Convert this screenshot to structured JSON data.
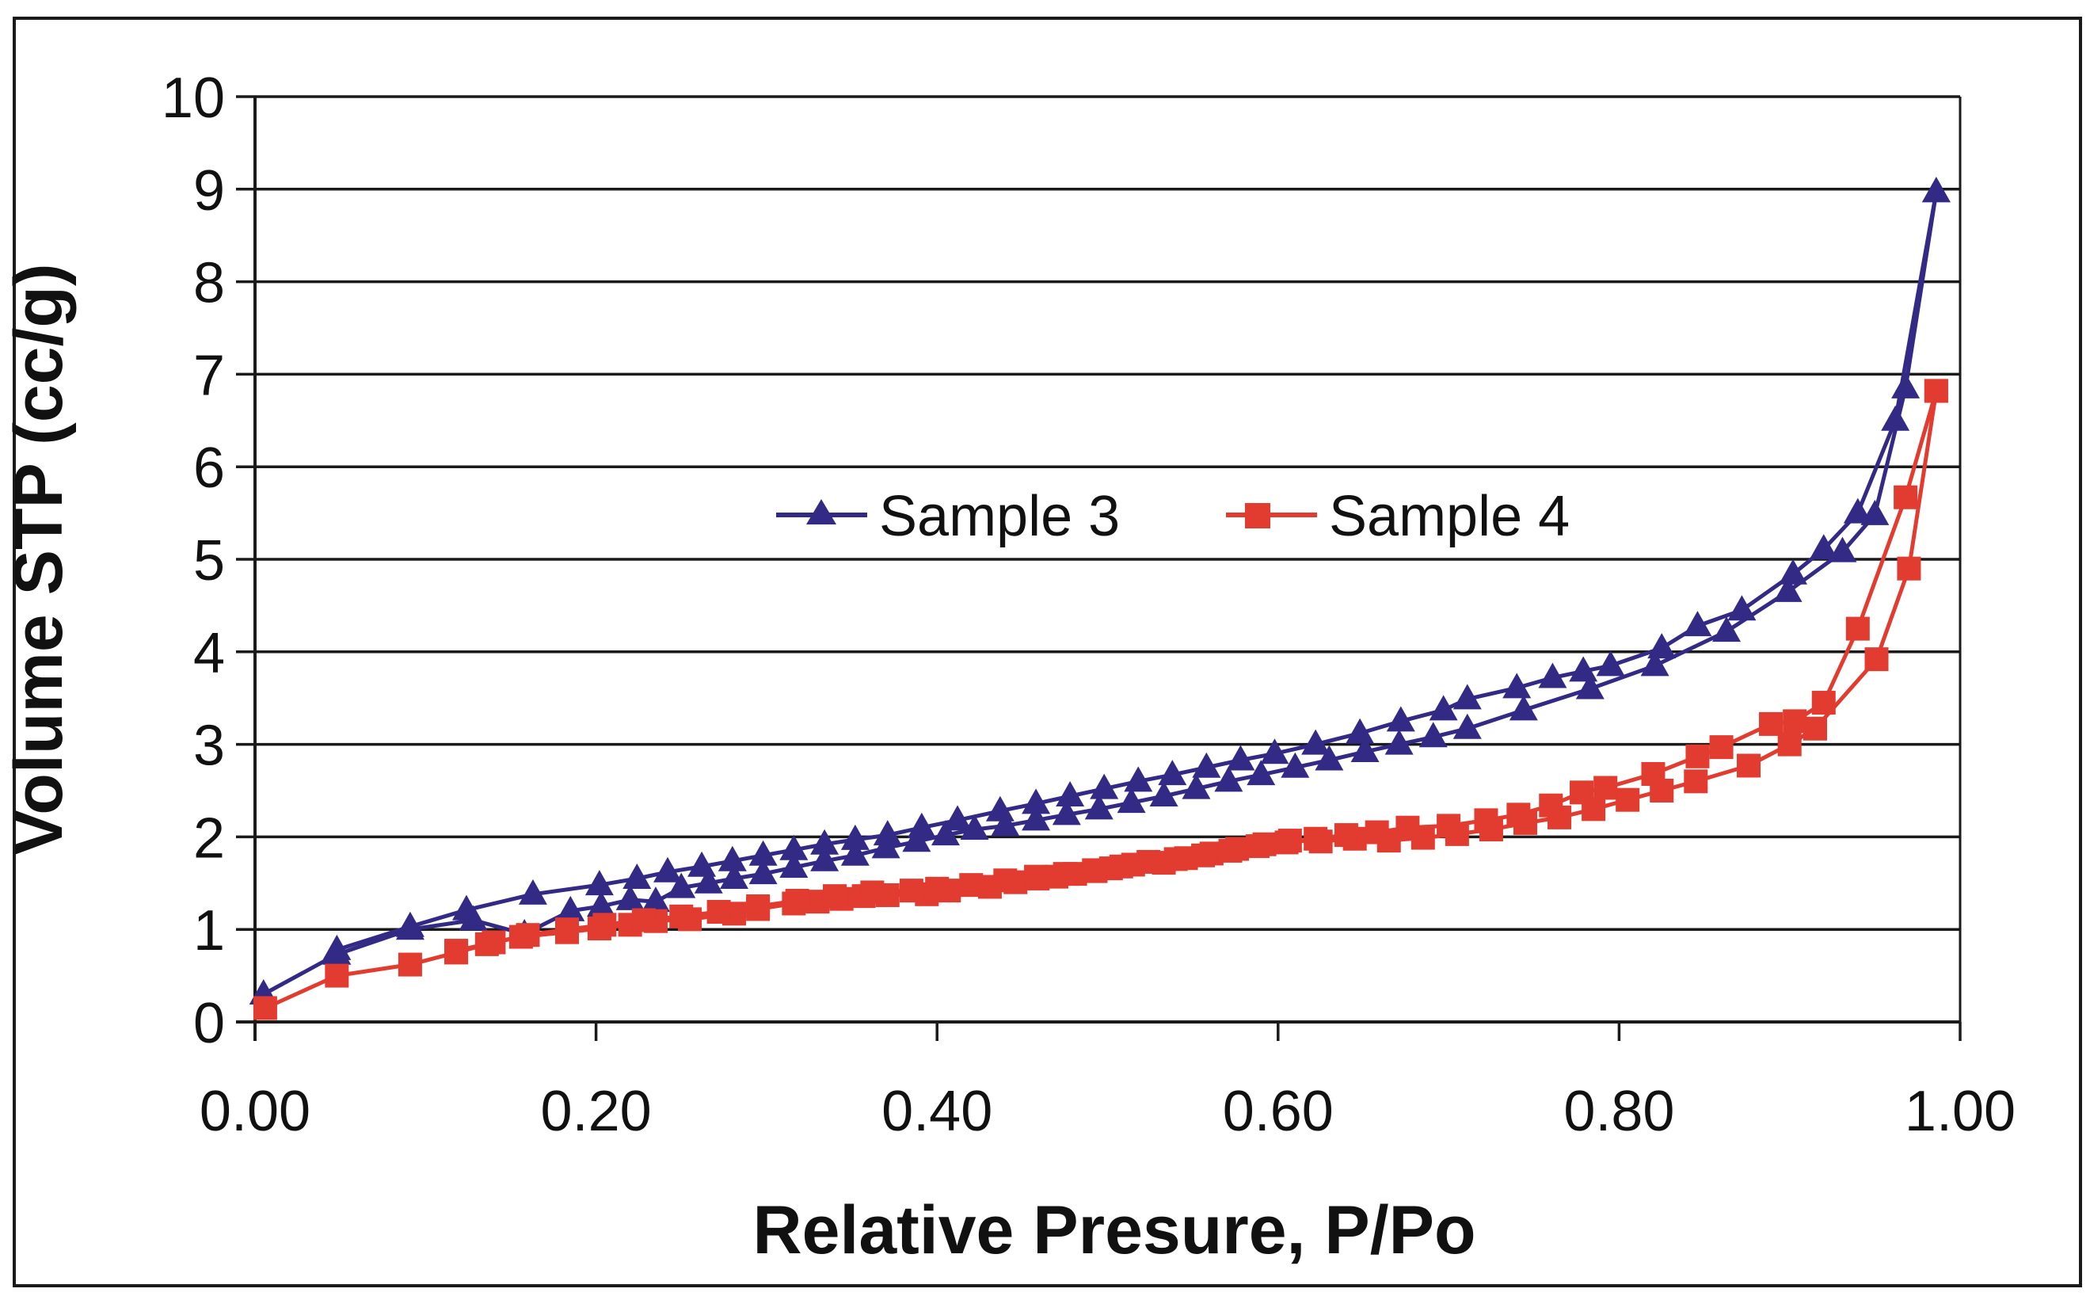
{
  "chart_data": {
    "type": "line",
    "title": "",
    "xlabel": "Relative Presure, P/Po",
    "ylabel": "Volume STP (cc/g)",
    "xlim": [
      0.0,
      1.0
    ],
    "ylim": [
      0,
      10
    ],
    "grid": "horizontal-only",
    "legend_position": "inside-upper-middle",
    "x_ticks": {
      "values": [
        0.0,
        0.2,
        0.4,
        0.6,
        0.8,
        1.0
      ],
      "labels": [
        "0.00",
        "0.20",
        "0.40",
        "0.60",
        "0.80",
        "1.00"
      ]
    },
    "y_ticks": {
      "values": [
        0,
        1,
        2,
        3,
        4,
        5,
        6,
        7,
        8,
        9,
        10
      ],
      "labels": [
        "0",
        "1",
        "2",
        "3",
        "4",
        "5",
        "6",
        "7",
        "8",
        "9",
        "10"
      ]
    },
    "series": [
      {
        "name": "Sample 3",
        "color": "#332a86",
        "marker": "triangle",
        "description": "adsorption-desorption isotherm with hysteresis loop",
        "branches": {
          "adsorption": [
            [
              0.005,
              0.3
            ],
            [
              0.048,
              0.73
            ],
            [
              0.091,
              1.0
            ],
            [
              0.128,
              1.1
            ],
            [
              0.158,
              0.95
            ],
            [
              0.185,
              1.2
            ],
            [
              0.203,
              1.25
            ],
            [
              0.22,
              1.32
            ],
            [
              0.235,
              1.3
            ],
            [
              0.25,
              1.45
            ],
            [
              0.266,
              1.5
            ],
            [
              0.281,
              1.55
            ],
            [
              0.298,
              1.6
            ],
            [
              0.316,
              1.67
            ],
            [
              0.334,
              1.74
            ],
            [
              0.352,
              1.8
            ],
            [
              0.37,
              1.88
            ],
            [
              0.388,
              1.95
            ],
            [
              0.405,
              2.02
            ],
            [
              0.422,
              2.08
            ],
            [
              0.44,
              2.12
            ],
            [
              0.458,
              2.18
            ],
            [
              0.476,
              2.24
            ],
            [
              0.495,
              2.3
            ],
            [
              0.514,
              2.37
            ],
            [
              0.533,
              2.44
            ],
            [
              0.552,
              2.52
            ],
            [
              0.571,
              2.6
            ],
            [
              0.59,
              2.67
            ],
            [
              0.61,
              2.75
            ],
            [
              0.63,
              2.83
            ],
            [
              0.651,
              2.92
            ],
            [
              0.671,
              3.0
            ],
            [
              0.691,
              3.08
            ],
            [
              0.711,
              3.17
            ],
            [
              0.744,
              3.37
            ],
            [
              0.783,
              3.6
            ],
            [
              0.821,
              3.85
            ],
            [
              0.863,
              4.22
            ],
            [
              0.899,
              4.65
            ],
            [
              0.931,
              5.08
            ],
            [
              0.95,
              5.48
            ],
            [
              0.968,
              6.85
            ],
            [
              0.986,
              8.97
            ]
          ],
          "desorption": [
            [
              0.986,
              8.97
            ],
            [
              0.962,
              6.5
            ],
            [
              0.94,
              5.5
            ],
            [
              0.92,
              5.11
            ],
            [
              0.902,
              4.84
            ],
            [
              0.872,
              4.45
            ],
            [
              0.846,
              4.28
            ],
            [
              0.825,
              4.04
            ],
            [
              0.795,
              3.85
            ],
            [
              0.779,
              3.79
            ],
            [
              0.761,
              3.72
            ],
            [
              0.74,
              3.61
            ],
            [
              0.711,
              3.49
            ],
            [
              0.697,
              3.37
            ],
            [
              0.672,
              3.25
            ],
            [
              0.648,
              3.12
            ],
            [
              0.622,
              3.0
            ],
            [
              0.598,
              2.9
            ],
            [
              0.578,
              2.83
            ],
            [
              0.558,
              2.75
            ],
            [
              0.538,
              2.67
            ],
            [
              0.518,
              2.6
            ],
            [
              0.498,
              2.52
            ],
            [
              0.478,
              2.44
            ],
            [
              0.458,
              2.36
            ],
            [
              0.437,
              2.28
            ],
            [
              0.412,
              2.18
            ],
            [
              0.391,
              2.1
            ],
            [
              0.371,
              2.02
            ],
            [
              0.352,
              1.97
            ],
            [
              0.334,
              1.92
            ],
            [
              0.316,
              1.86
            ],
            [
              0.298,
              1.8
            ],
            [
              0.28,
              1.74
            ],
            [
              0.262,
              1.68
            ],
            [
              0.242,
              1.62
            ],
            [
              0.224,
              1.55
            ],
            [
              0.202,
              1.48
            ],
            [
              0.163,
              1.38
            ],
            [
              0.124,
              1.21
            ],
            [
              0.091,
              1.03
            ],
            [
              0.048,
              0.78
            ]
          ]
        }
      },
      {
        "name": "Sample 4",
        "color": "#e23b30",
        "marker": "square",
        "description": "adsorption-desorption isotherm with hysteresis loop",
        "branches": {
          "adsorption": [
            [
              0.006,
              0.15
            ],
            [
              0.048,
              0.5
            ],
            [
              0.091,
              0.62
            ],
            [
              0.118,
              0.75
            ],
            [
              0.136,
              0.84
            ],
            [
              0.156,
              0.92
            ],
            [
              0.183,
              0.97
            ],
            [
              0.202,
              1.01
            ],
            [
              0.22,
              1.05
            ],
            [
              0.235,
              1.09
            ],
            [
              0.255,
              1.11
            ],
            [
              0.281,
              1.17
            ],
            [
              0.295,
              1.22
            ],
            [
              0.316,
              1.28
            ],
            [
              0.33,
              1.3
            ],
            [
              0.344,
              1.33
            ],
            [
              0.357,
              1.36
            ],
            [
              0.371,
              1.37
            ],
            [
              0.394,
              1.38
            ],
            [
              0.407,
              1.42
            ],
            [
              0.431,
              1.46
            ],
            [
              0.446,
              1.51
            ],
            [
              0.459,
              1.55
            ],
            [
              0.47,
              1.57
            ],
            [
              0.481,
              1.6
            ],
            [
              0.493,
              1.63
            ],
            [
              0.502,
              1.66
            ],
            [
              0.515,
              1.7
            ],
            [
              0.533,
              1.72
            ],
            [
              0.546,
              1.77
            ],
            [
              0.561,
              1.82
            ],
            [
              0.576,
              1.87
            ],
            [
              0.592,
              1.92
            ],
            [
              0.607,
              1.96
            ],
            [
              0.625,
              1.95
            ],
            [
              0.645,
              1.98
            ],
            [
              0.665,
              1.96
            ],
            [
              0.685,
              1.99
            ],
            [
              0.705,
              2.03
            ],
            [
              0.725,
              2.08
            ],
            [
              0.745,
              2.15
            ],
            [
              0.765,
              2.21
            ],
            [
              0.785,
              2.3
            ],
            [
              0.805,
              2.4
            ],
            [
              0.825,
              2.5
            ],
            [
              0.845,
              2.6
            ],
            [
              0.876,
              2.77
            ],
            [
              0.9,
              3.0
            ],
            [
              0.915,
              3.17
            ],
            [
              0.951,
              3.92
            ],
            [
              0.97,
              4.9
            ],
            [
              0.986,
              6.82
            ]
          ],
          "desorption": [
            [
              0.986,
              6.82
            ],
            [
              0.968,
              5.67
            ],
            [
              0.94,
              4.25
            ],
            [
              0.92,
              3.45
            ],
            [
              0.903,
              3.25
            ],
            [
              0.889,
              3.22
            ],
            [
              0.86,
              2.97
            ],
            [
              0.846,
              2.87
            ],
            [
              0.82,
              2.68
            ],
            [
              0.792,
              2.53
            ],
            [
              0.778,
              2.48
            ],
            [
              0.76,
              2.34
            ],
            [
              0.741,
              2.24
            ],
            [
              0.722,
              2.18
            ],
            [
              0.7,
              2.12
            ],
            [
              0.676,
              2.1
            ],
            [
              0.658,
              2.05
            ],
            [
              0.64,
              2.02
            ],
            [
              0.622,
              1.98
            ],
            [
              0.605,
              1.94
            ],
            [
              0.588,
              1.9
            ],
            [
              0.572,
              1.85
            ],
            [
              0.556,
              1.8
            ],
            [
              0.54,
              1.76
            ],
            [
              0.524,
              1.73
            ],
            [
              0.508,
              1.68
            ],
            [
              0.492,
              1.64
            ],
            [
              0.475,
              1.6
            ],
            [
              0.458,
              1.57
            ],
            [
              0.44,
              1.53
            ],
            [
              0.42,
              1.48
            ],
            [
              0.4,
              1.44
            ],
            [
              0.385,
              1.42
            ],
            [
              0.362,
              1.4
            ],
            [
              0.34,
              1.36
            ],
            [
              0.318,
              1.31
            ],
            [
              0.295,
              1.25
            ],
            [
              0.272,
              1.19
            ],
            [
              0.25,
              1.14
            ],
            [
              0.228,
              1.1
            ],
            [
              0.205,
              1.05
            ],
            [
              0.183,
              1.0
            ],
            [
              0.16,
              0.94
            ],
            [
              0.14,
              0.86
            ],
            [
              0.118,
              0.77
            ]
          ]
        }
      }
    ]
  },
  "legend": {
    "items": [
      {
        "label": "Sample 3",
        "marker": "triangle-icon",
        "color": "#332a86"
      },
      {
        "label": "Sample 4",
        "marker": "square-icon",
        "color": "#e23b30"
      }
    ]
  },
  "style": {
    "background": "#ffffff",
    "axis_color": "#1a1a1a",
    "grid_color": "#1a1a1a",
    "border_color": "#1a1a1a"
  }
}
